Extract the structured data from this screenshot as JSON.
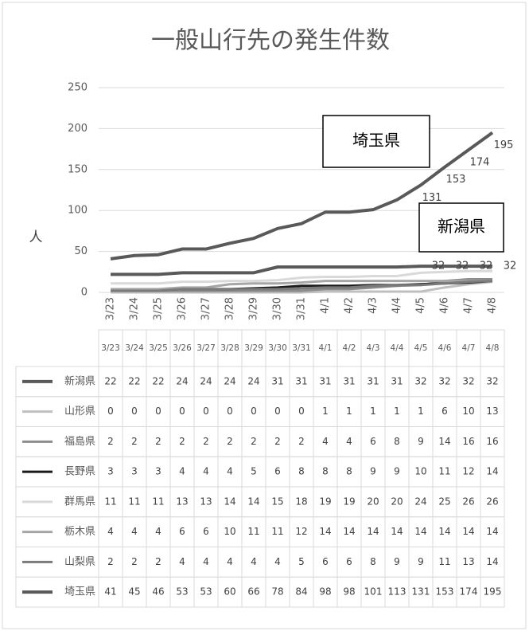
{
  "chart_data": {
    "type": "line",
    "title": "一般山行先の発生件数",
    "y_label": "人",
    "categories": [
      "3/23",
      "3/24",
      "3/25",
      "3/26",
      "3/27",
      "3/28",
      "3/29",
      "3/30",
      "3/31",
      "4/1",
      "4/2",
      "4/3",
      "4/4",
      "4/5",
      "4/6",
      "4/7",
      "4/8"
    ],
    "ylim": [
      0,
      250
    ],
    "yticks": [
      0,
      50,
      100,
      150,
      200,
      250
    ],
    "grid": true,
    "series": [
      {
        "name": "新潟県",
        "color": "#595959",
        "width": 4,
        "data_labels": true,
        "values": [
          22,
          22,
          22,
          24,
          24,
          24,
          24,
          31,
          31,
          31,
          31,
          31,
          31,
          32,
          32,
          32,
          32
        ]
      },
      {
        "name": "山形県",
        "color": "#bfbfbf",
        "width": 3,
        "values": [
          0,
          0,
          0,
          0,
          0,
          0,
          0,
          0,
          0,
          1,
          1,
          1,
          1,
          1,
          6,
          10,
          13
        ]
      },
      {
        "name": "福島県",
        "color": "#8c8c8c",
        "width": 3,
        "values": [
          2,
          2,
          2,
          2,
          2,
          2,
          2,
          2,
          2,
          4,
          4,
          6,
          8,
          9,
          14,
          16,
          16
        ]
      },
      {
        "name": "長野県",
        "color": "#1a1a1a",
        "width": 3,
        "values": [
          3,
          3,
          3,
          4,
          4,
          4,
          5,
          6,
          8,
          8,
          8,
          9,
          9,
          10,
          11,
          12,
          14
        ]
      },
      {
        "name": "群馬県",
        "color": "#d9d9d9",
        "width": 3,
        "values": [
          11,
          11,
          11,
          13,
          13,
          14,
          14,
          15,
          18,
          19,
          19,
          20,
          20,
          24,
          25,
          26,
          26
        ]
      },
      {
        "name": "栃木県",
        "color": "#a6a6a6",
        "width": 3,
        "values": [
          4,
          4,
          4,
          6,
          6,
          10,
          11,
          11,
          12,
          14,
          14,
          14,
          14,
          14,
          14,
          14,
          14
        ]
      },
      {
        "name": "山梨県",
        "color": "#7a7a7a",
        "width": 3,
        "values": [
          2,
          2,
          2,
          4,
          4,
          4,
          4,
          4,
          5,
          6,
          6,
          8,
          9,
          9,
          11,
          13,
          14
        ]
      },
      {
        "name": "埼玉県",
        "color": "#595959",
        "width": 4,
        "data_labels": true,
        "values": [
          41,
          45,
          46,
          53,
          53,
          60,
          66,
          78,
          84,
          98,
          98,
          101,
          113,
          131,
          153,
          174,
          195
        ]
      }
    ],
    "annotations": [
      "埼玉県",
      "新潟県"
    ]
  }
}
